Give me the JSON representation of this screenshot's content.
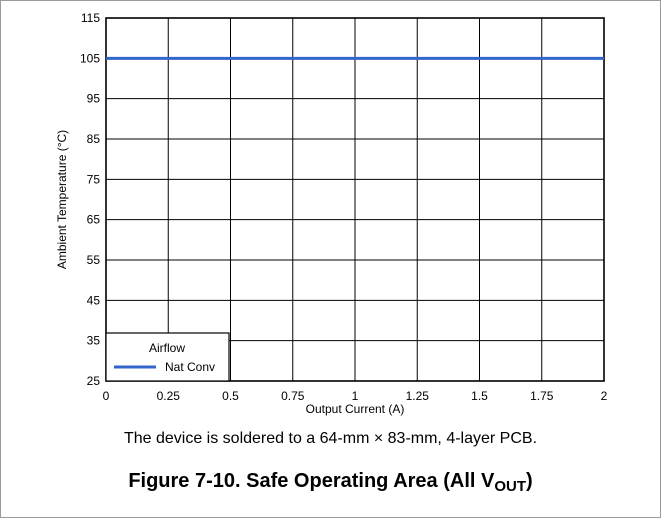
{
  "chart_data": {
    "type": "line",
    "title": "",
    "xlabel": "Output Current (A)",
    "ylabel": "Ambient Temperature (°C)",
    "xlim": [
      0,
      2
    ],
    "ylim": [
      25,
      115
    ],
    "x_ticks": [
      "0",
      "0.25",
      "0.5",
      "0.75",
      "1",
      "1.25",
      "1.5",
      "1.75",
      "2"
    ],
    "y_ticks": [
      "25",
      "35",
      "45",
      "55",
      "65",
      "75",
      "85",
      "95",
      "105",
      "115"
    ],
    "grid": true,
    "legend": {
      "title": "Airflow",
      "placement": "bottom-left"
    },
    "series": [
      {
        "name": "Nat Conv",
        "color": "#3366cc",
        "x": [
          0,
          2
        ],
        "y": [
          105,
          105
        ]
      }
    ]
  },
  "note": "The device is soldered to a 64-mm × 83-mm, 4-layer PCB.",
  "caption": {
    "main": "Figure 7-10. Safe Operating Area (All V",
    "sub": "OUT",
    "end": ")"
  }
}
